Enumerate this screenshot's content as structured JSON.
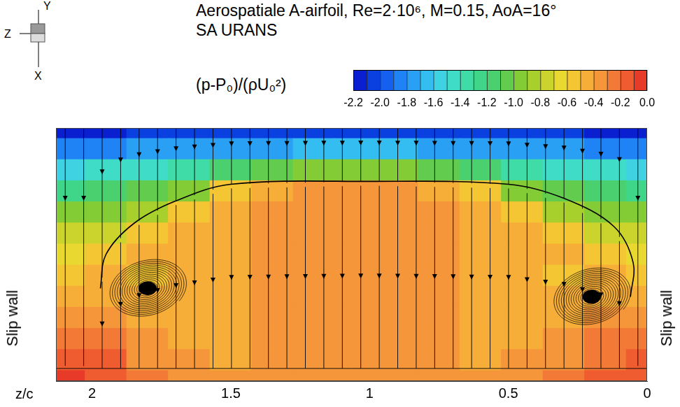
{
  "chart_data": {
    "type": "contour",
    "title": "Aerospatiale A-airfoil, Re=2·10⁶, M=0.15, AoA=16°",
    "subtitle": "SA URANS",
    "x_label": "z/c",
    "xlim": [
      2.13,
      0
    ],
    "xticks": [
      2,
      1.5,
      1,
      0.5,
      0
    ],
    "ylim": [
      0,
      0.9
    ],
    "tick_labels": "x",
    "grid": false,
    "colorbar_label": "(p-P₀)/(ρU₀²)",
    "colorbar": {
      "range": [
        -2.2,
        0
      ],
      "ticks": [
        -2.2,
        {
          "value": -2,
          "label": "-2.0"
        },
        -1.8,
        -1.6,
        -1.4,
        -1.2,
        {
          "value": -1,
          "label": "-1.0"
        },
        -0.8,
        -0.6,
        -0.4,
        -0.2,
        {
          "value": 0,
          "label": "0.0"
        }
      ],
      "colors": [
        "#0a1fd0",
        "#0a3fe0",
        "#1560ee",
        "#1f82f5",
        "#2aa0f5",
        "#33bdf0",
        "#3fd2e3",
        "#3fdcc8",
        "#3fdca8",
        "#40d68a",
        "#4ad06e",
        "#62cc4e",
        "#84cc36",
        "#a8d02c",
        "#cad42c",
        "#e8d830",
        "#f5c634",
        "#f7ae38",
        "#f5963a",
        "#f27a36",
        "#ee5c30",
        "#e83a28"
      ]
    },
    "cells": {
      "z": [
        2.1,
        1.95,
        1.8,
        1.65,
        1.5,
        1.35,
        1.2,
        1.05,
        0.9,
        0.75,
        0.6,
        0.45,
        0.3,
        0.15,
        0.0
      ],
      "y": [
        0.9,
        0.825,
        0.75,
        0.675,
        0.6,
        0.525,
        0.45,
        0.375,
        0.3,
        0.225,
        0.15,
        0.075,
        0.0
      ],
      "values": [
        [
          -2.15,
          -2.15,
          -2.1,
          -2.1,
          -2.05,
          -2.05,
          -2.05,
          -2.05,
          -2.05,
          -2.05,
          -2.05,
          -2.1,
          -2.1,
          -2.15,
          -2.15
        ],
        [
          -1.85,
          -1.85,
          -1.8,
          -1.8,
          -1.75,
          -1.75,
          -1.7,
          -1.7,
          -1.7,
          -1.75,
          -1.75,
          -1.8,
          -1.8,
          -1.85,
          -1.85
        ],
        [
          -1.55,
          -1.5,
          -1.45,
          -1.35,
          -1.2,
          -1.05,
          -1.0,
          -1.0,
          -1.0,
          -1.05,
          -1.2,
          -1.35,
          -1.45,
          -1.5,
          -1.55
        ],
        [
          -1.25,
          -1.2,
          -1.1,
          -0.95,
          -0.55,
          -0.45,
          -0.4,
          -0.4,
          -0.4,
          -0.45,
          -0.55,
          -0.95,
          -1.1,
          -1.2,
          -1.25
        ],
        [
          -1.0,
          -0.95,
          -0.85,
          -0.55,
          -0.45,
          -0.4,
          -0.35,
          -0.35,
          -0.35,
          -0.4,
          -0.45,
          -0.55,
          -0.85,
          -0.95,
          -1.0
        ],
        [
          -0.8,
          -0.75,
          -0.55,
          -0.45,
          -0.45,
          -0.35,
          -0.35,
          -0.35,
          -0.35,
          -0.35,
          -0.45,
          -0.45,
          -0.55,
          -0.75,
          -0.8
        ],
        [
          -0.65,
          -0.55,
          -0.5,
          -0.45,
          -0.45,
          -0.35,
          -0.35,
          -0.35,
          -0.35,
          -0.35,
          -0.45,
          -0.45,
          -0.5,
          -0.55,
          -0.65
        ],
        [
          -0.55,
          -0.5,
          -0.55,
          -0.45,
          -0.45,
          -0.35,
          -0.35,
          -0.35,
          -0.35,
          -0.35,
          -0.45,
          -0.45,
          -0.55,
          -0.5,
          -0.55
        ],
        [
          -0.45,
          -0.45,
          -0.5,
          -0.45,
          -0.45,
          -0.35,
          -0.35,
          -0.35,
          -0.35,
          -0.35,
          -0.45,
          -0.45,
          -0.5,
          -0.45,
          -0.45
        ],
        [
          -0.35,
          -0.4,
          -0.45,
          -0.45,
          -0.45,
          -0.35,
          -0.35,
          -0.35,
          -0.35,
          -0.35,
          -0.45,
          -0.45,
          -0.45,
          -0.4,
          -0.35
        ],
        [
          -0.25,
          -0.3,
          -0.4,
          -0.45,
          -0.45,
          -0.35,
          -0.35,
          -0.35,
          -0.35,
          -0.35,
          -0.45,
          -0.45,
          -0.4,
          -0.3,
          -0.25
        ],
        [
          -0.15,
          -0.2,
          -0.35,
          -0.4,
          -0.45,
          -0.4,
          -0.35,
          -0.35,
          -0.35,
          -0.4,
          -0.45,
          -0.4,
          -0.35,
          -0.25,
          -0.2
        ],
        [
          -0.1,
          -0.15,
          -0.3,
          -0.4,
          -0.4,
          -0.4,
          -0.35,
          -0.35,
          -0.35,
          -0.4,
          -0.4,
          -0.4,
          -0.3,
          -0.2,
          -0.15
        ]
      ]
    },
    "vortex_centers": {
      "z": [
        1.8,
        0.2
      ],
      "y": [
        0.33,
        0.3
      ]
    },
    "dividing_streamline": {
      "z": [
        1.97,
        1.95,
        1.85,
        1.7,
        1.5,
        1.0,
        0.5,
        0.3,
        0.12,
        0.05,
        0.06
      ],
      "y": [
        0.33,
        0.45,
        0.56,
        0.64,
        0.7,
        0.71,
        0.7,
        0.65,
        0.55,
        0.42,
        0.3
      ]
    },
    "annotations": [
      {
        "text": "Slip wall",
        "side": "left"
      },
      {
        "text": "Slip wall",
        "side": "right"
      }
    ],
    "orientation_labels": [
      "Y",
      "Z",
      "X"
    ]
  }
}
